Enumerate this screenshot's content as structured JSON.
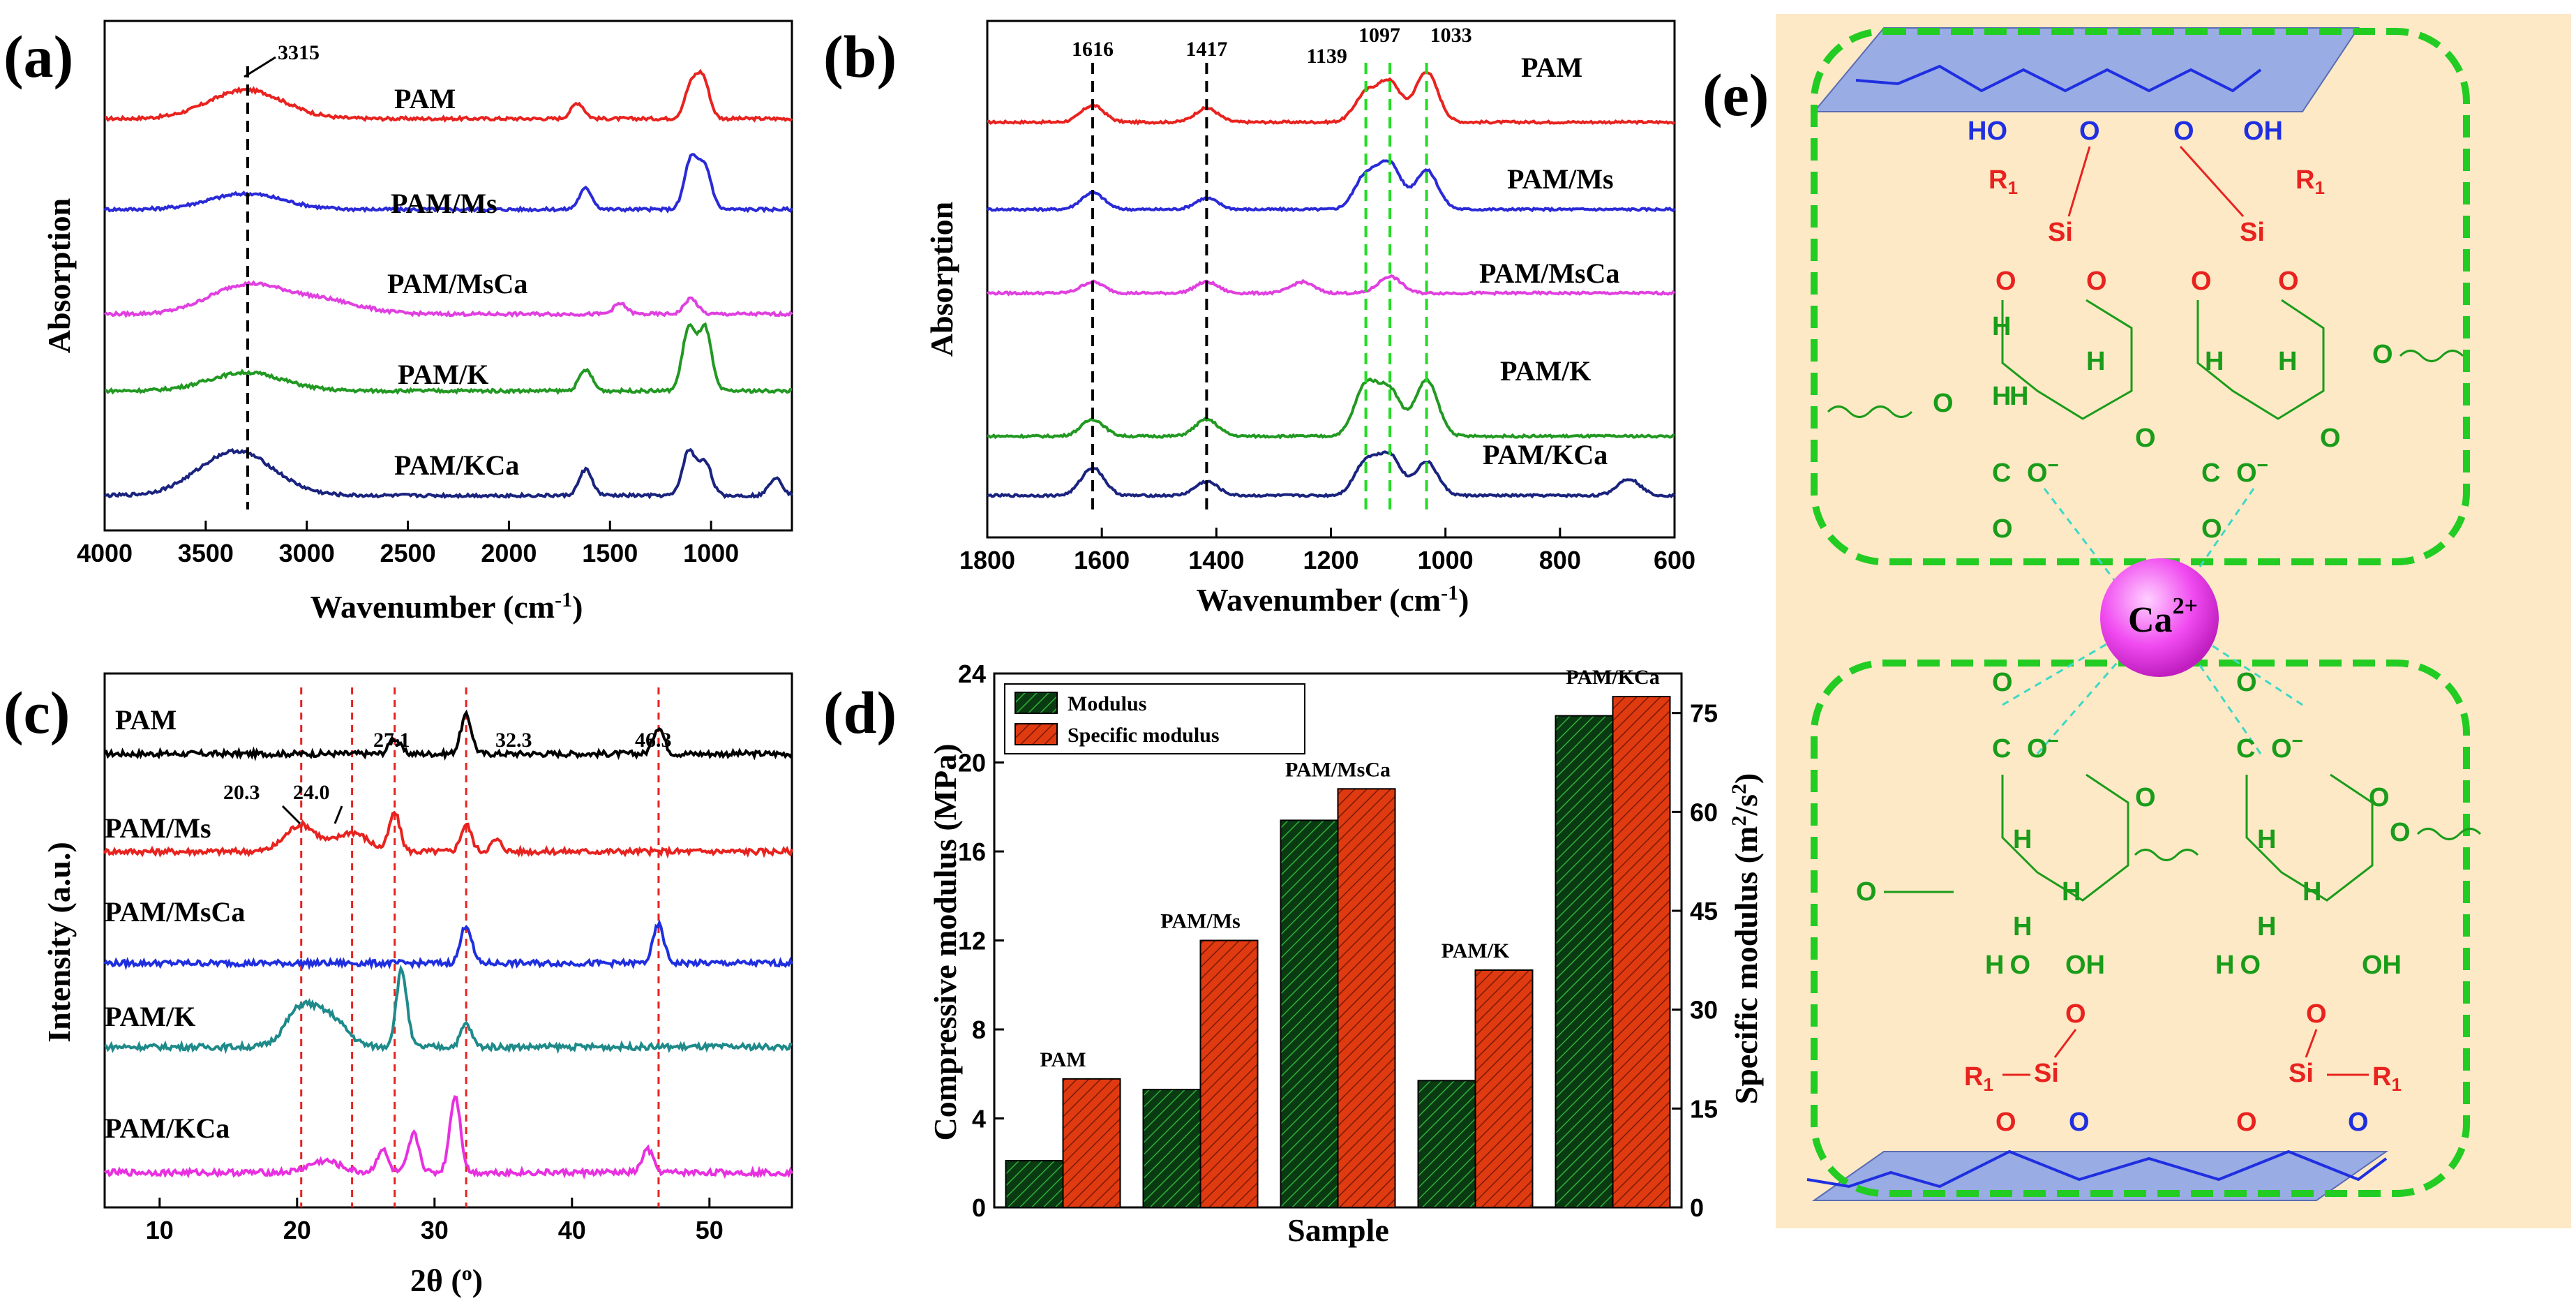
{
  "colors": {
    "PAM": "#e8231f",
    "PAM/Ms": "#2a2ad8",
    "PAM/MsCa": "#e040e0",
    "PAM/K": "#229922",
    "PAM/KCa": "#1a237e",
    "xrd_PAM": "#000000",
    "xrd_PAM/Ms": "#e8231f",
    "xrd_PAM/MsCa": "#1f2fe0",
    "xrd_PAM/K": "#1f8a8a",
    "xrd_PAM/KCa": "#e830e0",
    "modulus": "#0a3a12",
    "specific": "#e03a10",
    "schematic_bg": "#fde9c6",
    "green": "#1a9c1a",
    "red": "#e8231f",
    "blue": "#1f2fe0"
  },
  "chart_data": [
    {
      "panel": "(a)",
      "type": "line",
      "xlabel": "Wavenumber (cm",
      "xlabel_sup": "-1",
      "xlabel_end": ")",
      "ylabel": "Absorption",
      "xlim": [
        4000,
        600
      ],
      "xticks": [
        4000,
        3500,
        3000,
        2500,
        2000,
        1500,
        1000
      ],
      "series": [
        {
          "name": "PAM",
          "peaks": [
            [
              3300,
              0.55
            ],
            [
              1660,
              0.3
            ],
            [
              1100,
              0.6
            ],
            [
              1040,
              0.75
            ]
          ]
        },
        {
          "name": "PAM/Ms",
          "peaks": [
            [
              3300,
              0.3
            ],
            [
              1620,
              0.4
            ],
            [
              1100,
              0.95
            ],
            [
              1030,
              0.8
            ]
          ]
        },
        {
          "name": "PAM/MsCa",
          "peaks": [
            [
              3300,
              0.55
            ],
            [
              2920,
              0.25
            ],
            [
              1450,
              0.2
            ],
            [
              1100,
              0.3
            ]
          ]
        },
        {
          "name": "PAM/K",
          "peaks": [
            [
              3300,
              0.35
            ],
            [
              1620,
              0.4
            ],
            [
              1110,
              1.2
            ],
            [
              1030,
              1.2
            ]
          ]
        },
        {
          "name": "PAM/KCa",
          "peaks": [
            [
              3350,
              0.85
            ],
            [
              1620,
              0.5
            ],
            [
              1110,
              0.85
            ],
            [
              1030,
              0.65
            ],
            [
              680,
              0.35
            ]
          ]
        }
      ],
      "annotations": [
        {
          "text": "3315",
          "x": 3315
        }
      ]
    },
    {
      "panel": "(b)",
      "type": "line",
      "xlabel": "Wavenumber (cm",
      "xlabel_sup": "-1",
      "xlabel_end": ")",
      "ylabel": "Absorption",
      "xlim": [
        1800,
        600
      ],
      "xticks": [
        1800,
        1600,
        1400,
        1200,
        1000,
        800,
        600
      ],
      "series": [
        {
          "name": "PAM",
          "peaks": [
            [
              1616,
              0.3
            ],
            [
              1417,
              0.25
            ],
            [
              1139,
              0.5
            ],
            [
              1097,
              0.7
            ],
            [
              1033,
              0.9
            ]
          ]
        },
        {
          "name": "PAM/Ms",
          "peaks": [
            [
              1616,
              0.3
            ],
            [
              1417,
              0.2
            ],
            [
              1139,
              0.6
            ],
            [
              1097,
              0.8
            ],
            [
              1033,
              0.7
            ]
          ]
        },
        {
          "name": "PAM/MsCa",
          "peaks": [
            [
              1616,
              0.2
            ],
            [
              1417,
              0.2
            ],
            [
              1250,
              0.2
            ],
            [
              1097,
              0.3
            ]
          ]
        },
        {
          "name": "PAM/K",
          "peaks": [
            [
              1616,
              0.3
            ],
            [
              1417,
              0.3
            ],
            [
              1139,
              0.9
            ],
            [
              1097,
              0.8
            ],
            [
              1033,
              1.0
            ]
          ]
        },
        {
          "name": "PAM/KCa",
          "peaks": [
            [
              1616,
              0.5
            ],
            [
              1417,
              0.25
            ],
            [
              1139,
              0.6
            ],
            [
              1097,
              0.7
            ],
            [
              1033,
              0.6
            ],
            [
              680,
              0.3
            ]
          ]
        }
      ],
      "vlines": [
        {
          "x": 1616,
          "label": "1616",
          "color": "black"
        },
        {
          "x": 1417,
          "label": "1417",
          "color": "black"
        },
        {
          "x": 1139,
          "label": "1139",
          "color": "green"
        },
        {
          "x": 1097,
          "label": "1097",
          "color": "green"
        },
        {
          "x": 1033,
          "label": "1033",
          "color": "green"
        }
      ]
    },
    {
      "panel": "(c)",
      "type": "line",
      "xlabel": "2θ (",
      "xlabel_sup": "o",
      "xlabel_end": ")",
      "ylabel": "Intensity (a.u.)",
      "xlim": [
        6,
        56
      ],
      "xticks": [
        10,
        20,
        30,
        40,
        50
      ],
      "series": [
        {
          "name": "PAM",
          "peaks": [
            [
              27.1,
              0.4
            ],
            [
              32.3,
              1.0
            ],
            [
              46.3,
              0.7
            ]
          ]
        },
        {
          "name": "PAM/Ms",
          "peaks": [
            [
              20.3,
              0.7
            ],
            [
              24.0,
              0.5
            ],
            [
              27.1,
              1.0
            ],
            [
              32.3,
              0.7
            ],
            [
              34.5,
              0.3
            ]
          ]
        },
        {
          "name": "PAM/MsCa",
          "peaks": [
            [
              32.3,
              1.0
            ],
            [
              46.3,
              1.0
            ]
          ]
        },
        {
          "name": "PAM/K",
          "peaks": [
            [
              20.3,
              1.0
            ],
            [
              22.5,
              0.7
            ],
            [
              27.6,
              2.0
            ],
            [
              32.3,
              0.6
            ]
          ]
        },
        {
          "name": "PAM/KCa",
          "peaks": [
            [
              22,
              0.3
            ],
            [
              26.2,
              0.6
            ],
            [
              28.5,
              1.0
            ],
            [
              31.5,
              2.0
            ],
            [
              45.5,
              0.6
            ]
          ]
        }
      ],
      "vlines": [
        20.3,
        24.0,
        27.1,
        32.3,
        46.3
      ],
      "annotations": [
        "27.1",
        "32.3",
        "46.3",
        "20.3",
        "24.0"
      ]
    },
    {
      "panel": "(d)",
      "type": "bar",
      "xlabel": "Sample",
      "ylabel_left": "Compressive modulus (MPa)",
      "ylabel_right": "Specific modulus (m",
      "ylabel_right_sup": "2",
      "ylabel_right_mid": "/s",
      "ylabel_right_end": ")",
      "categories": [
        "PAM",
        "PAM/Ms",
        "PAM/MsCa",
        "PAM/K",
        "PAM/KCa"
      ],
      "series": [
        {
          "name": "Modulus",
          "axis": "left",
          "values": [
            2.1,
            5.3,
            17.4,
            5.7,
            22.1
          ]
        },
        {
          "name": "Specific modulus",
          "axis": "right",
          "values": [
            19.5,
            40.5,
            63.5,
            36.0,
            77.5
          ]
        }
      ],
      "ylim_left": [
        0,
        24
      ],
      "yticks_left": [
        0,
        4,
        8,
        12,
        16,
        20,
        24
      ],
      "ylim_right": [
        0,
        81
      ],
      "yticks_right": [
        0,
        15,
        30,
        45,
        60,
        75
      ]
    }
  ],
  "panel_labels": {
    "a": "(a)",
    "b": "(b)",
    "c": "(c)",
    "d": "(d)",
    "e": "(e)"
  },
  "schematic": {
    "ion": "Ca",
    "ion_charge": "2+",
    "si": "Si",
    "r1": "R",
    "r1_sub": "1",
    "oh": "OH",
    "ho": "HO",
    "h": "H",
    "o": "O",
    "c": "C",
    "o_minus": "O",
    "minus": "−"
  }
}
